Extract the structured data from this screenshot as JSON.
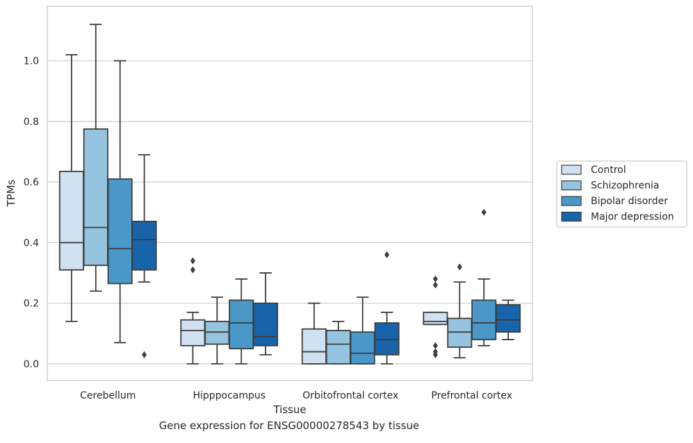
{
  "chart_data": {
    "type": "box",
    "xlabel": "Tissue",
    "ylabel": "TPMs",
    "ylim": [
      -0.055,
      1.18
    ],
    "yticks": [
      0.0,
      0.2,
      0.4,
      0.6,
      0.8,
      1.0
    ],
    "ytick_labels": [
      "0.0",
      "0.2",
      "0.4",
      "0.6",
      "0.8",
      "1.0"
    ],
    "grid": "horizontal",
    "legend_position": "right-outside",
    "categories": [
      "Cerebellum",
      "Hipppocampus",
      "Orbitofrontal cortex",
      "Prefrontal cortex"
    ],
    "series": [
      {
        "name": "Control",
        "color": "#d0e1f2",
        "boxes": [
          {
            "whislo": 0.14,
            "q1": 0.31,
            "med": 0.4,
            "q3": 0.635,
            "whishi": 1.02,
            "fliers": []
          },
          {
            "whislo": 0.0,
            "q1": 0.06,
            "med": 0.11,
            "q3": 0.145,
            "whishi": 0.17,
            "fliers": [
              0.31,
              0.34
            ]
          },
          {
            "whislo": 0.0,
            "q1": 0.0,
            "med": 0.04,
            "q3": 0.115,
            "whishi": 0.2,
            "fliers": []
          },
          {
            "whislo": 0.13,
            "q1": 0.13,
            "med": 0.14,
            "q3": 0.17,
            "whishi": 0.17,
            "fliers": [
              0.03,
              0.04,
              0.06,
              0.26,
              0.28
            ]
          }
        ]
      },
      {
        "name": "Schizophrenia",
        "color": "#94c4df",
        "boxes": [
          {
            "whislo": 0.24,
            "q1": 0.325,
            "med": 0.45,
            "q3": 0.775,
            "whishi": 1.12,
            "fliers": []
          },
          {
            "whislo": 0.0,
            "q1": 0.065,
            "med": 0.105,
            "q3": 0.14,
            "whishi": 0.22,
            "fliers": []
          },
          {
            "whislo": 0.0,
            "q1": 0.0,
            "med": 0.065,
            "q3": 0.11,
            "whishi": 0.14,
            "fliers": []
          },
          {
            "whislo": 0.02,
            "q1": 0.055,
            "med": 0.105,
            "q3": 0.15,
            "whishi": 0.27,
            "fliers": [
              0.32
            ]
          }
        ]
      },
      {
        "name": "Bipolar disorder",
        "color": "#4a98c9",
        "boxes": [
          {
            "whislo": 0.07,
            "q1": 0.265,
            "med": 0.38,
            "q3": 0.61,
            "whishi": 1.0,
            "fliers": []
          },
          {
            "whislo": 0.0,
            "q1": 0.05,
            "med": 0.135,
            "q3": 0.21,
            "whishi": 0.28,
            "fliers": []
          },
          {
            "whislo": 0.0,
            "q1": 0.0,
            "med": 0.035,
            "q3": 0.105,
            "whishi": 0.22,
            "fliers": []
          },
          {
            "whislo": 0.06,
            "q1": 0.08,
            "med": 0.135,
            "q3": 0.21,
            "whishi": 0.28,
            "fliers": [
              0.5
            ]
          }
        ]
      },
      {
        "name": "Major depression",
        "color": "#1764ab",
        "boxes": [
          {
            "whislo": 0.27,
            "q1": 0.31,
            "med": 0.41,
            "q3": 0.47,
            "whishi": 0.69,
            "fliers": [
              0.03
            ]
          },
          {
            "whislo": 0.03,
            "q1": 0.06,
            "med": 0.09,
            "q3": 0.2,
            "whishi": 0.3,
            "fliers": []
          },
          {
            "whislo": 0.0,
            "q1": 0.03,
            "med": 0.08,
            "q3": 0.135,
            "whishi": 0.17,
            "fliers": [
              0.36
            ]
          },
          {
            "whislo": 0.08,
            "q1": 0.105,
            "med": 0.145,
            "q3": 0.195,
            "whishi": 0.21,
            "fliers": []
          }
        ]
      }
    ]
  },
  "caption": "Gene expression for ENSG00000278543 by tissue"
}
